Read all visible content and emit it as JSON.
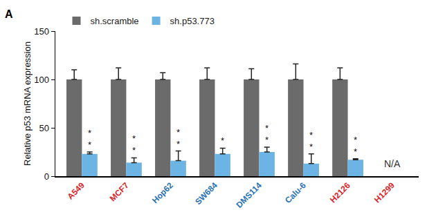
{
  "chart_data": {
    "type": "bar",
    "panel_label": "A",
    "y_label": "Relative p53 mRNA expression",
    "categories": [
      "A549",
      "MCF7",
      "Hop62",
      "SW684",
      "DMS114",
      "Calu-6",
      "H2126",
      "H1299"
    ],
    "series": [
      {
        "name": "sh.scramble",
        "color": "#6b6b6b",
        "values": [
          100,
          100,
          100,
          100,
          100,
          100,
          100,
          null
        ],
        "errors": [
          10,
          12,
          7,
          12,
          11,
          16,
          12,
          null
        ]
      },
      {
        "name": "sh.p53.773",
        "color": "#6cb4e4",
        "values": [
          23,
          14,
          16,
          23,
          25,
          13,
          17,
          null
        ],
        "errors": [
          2,
          5,
          10,
          6,
          5,
          10,
          1,
          null
        ]
      }
    ],
    "annotations": [
      {
        "text": "**",
        "category": "A549",
        "series": "sh.p53.773"
      },
      {
        "text": "**",
        "category": "MCF7",
        "series": "sh.p53.773"
      },
      {
        "text": "**",
        "category": "Hop62",
        "series": "sh.p53.773"
      },
      {
        "text": "*",
        "category": "SW684",
        "series": "sh.p53.773"
      },
      {
        "text": "**",
        "category": "DMS114",
        "series": "sh.p53.773"
      },
      {
        "text": "**",
        "category": "Calu-6",
        "series": "sh.p53.773"
      },
      {
        "text": "**",
        "category": "H2126",
        "series": "sh.p53.773"
      },
      {
        "text": "N/A",
        "category": "H1299"
      }
    ],
    "ylim": [
      0,
      150
    ],
    "yticks": [
      0,
      50,
      100,
      150
    ],
    "grid": false,
    "legend": "top"
  }
}
